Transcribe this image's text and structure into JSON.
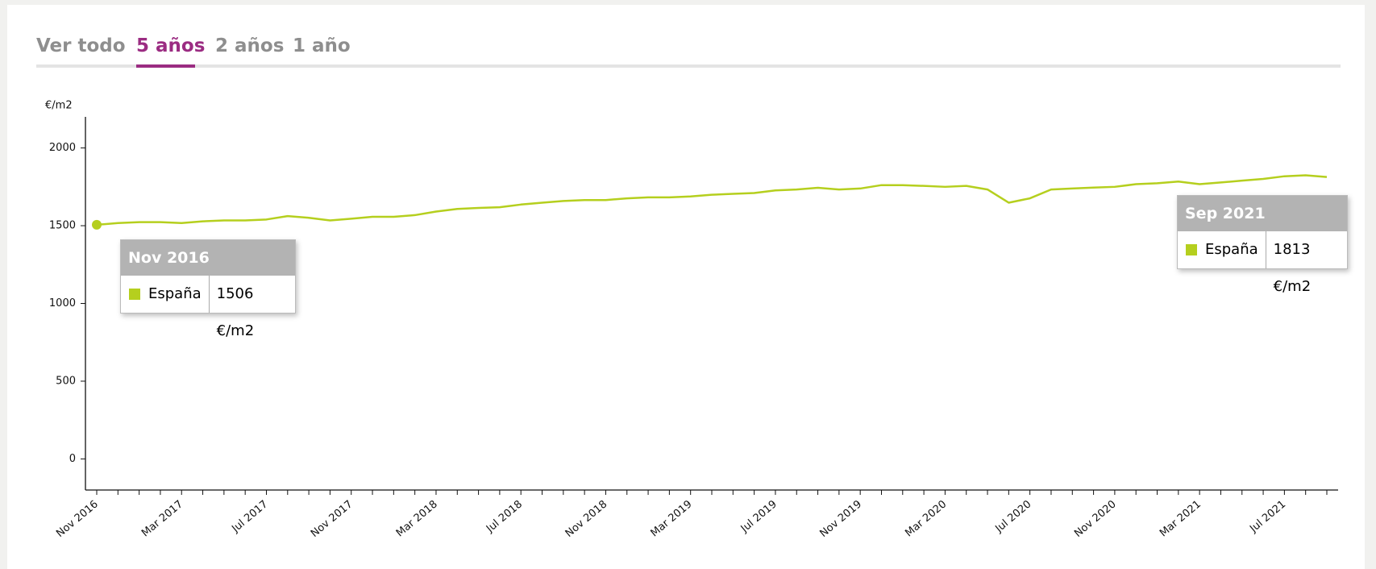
{
  "tabs": [
    "Ver todo",
    "5 años",
    "2 años",
    "1 año"
  ],
  "chart_data": {
    "type": "line",
    "y_label": "€/m2",
    "categories": [
      "Nov 2016",
      null,
      null,
      null,
      "Mar 2017",
      null,
      null,
      null,
      "Jul 2017",
      null,
      null,
      null,
      "Nov 2017",
      null,
      null,
      null,
      "Mar 2018",
      null,
      null,
      null,
      "Jul 2018",
      null,
      null,
      null,
      "Nov 2018",
      null,
      null,
      null,
      "Mar 2019",
      null,
      null,
      null,
      "Jul 2019",
      null,
      null,
      null,
      "Nov 2019",
      null,
      null,
      null,
      "Mar 2020",
      null,
      null,
      null,
      "Jul 2020",
      null,
      null,
      null,
      "Nov 2020",
      null,
      null,
      null,
      "Mar 2021",
      null,
      null,
      null,
      "Jul 2021",
      null,
      null
    ],
    "series": [
      {
        "name": "España",
        "color": "#b5cf1e",
        "values": [
          1506,
          1517,
          1523,
          1523,
          1517,
          1528,
          1534,
          1534,
          1540,
          1562,
          1551,
          1534,
          1545,
          1557,
          1557,
          1568,
          1591,
          1608,
          1614,
          1619,
          1636,
          1648,
          1659,
          1665,
          1665,
          1676,
          1682,
          1682,
          1688,
          1699,
          1705,
          1710,
          1727,
          1733,
          1744,
          1733,
          1739,
          1761,
          1761,
          1756,
          1750,
          1756,
          1733,
          1648,
          1676,
          1733,
          1739,
          1745,
          1750,
          1767,
          1773,
          1784,
          1767,
          1778,
          1790,
          1801,
          1818,
          1824,
          1813
        ]
      }
    ],
    "ylim": [
      -200,
      2200
    ],
    "yticks": [
      0,
      500,
      1000,
      1500,
      2000
    ],
    "grid": false,
    "tooltips": [
      {
        "title": "Nov 2016",
        "series": "España",
        "value_label": "1506 €/m2"
      },
      {
        "title": "Sep 2021",
        "series": "España",
        "value_label": "1813 €/m2"
      }
    ]
  }
}
